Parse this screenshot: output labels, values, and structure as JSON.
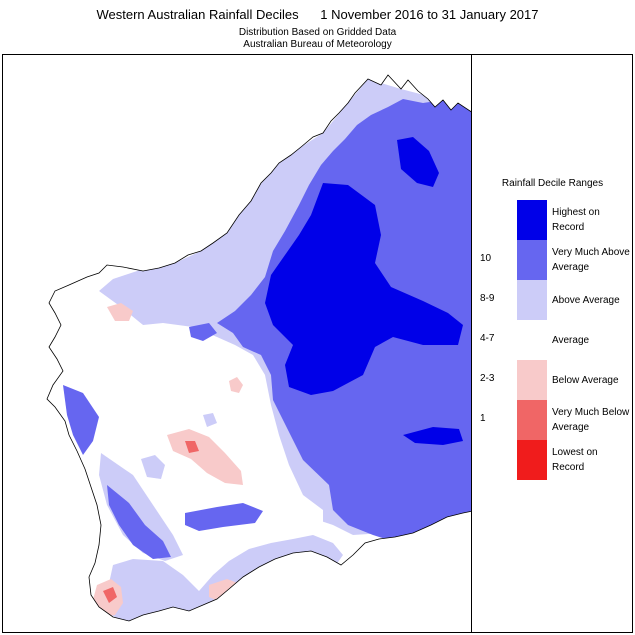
{
  "header": {
    "title": "Western Australian Rainfall Deciles      1 November 2016 to 31 January 2017",
    "subtitle_line1": "Distribution Based on Gridded Data",
    "subtitle_line2": "Australian Bureau of Meteorology"
  },
  "legend": {
    "title": "Rainfall Decile Ranges",
    "ranges": [
      {
        "code": "",
        "label": "Highest on Record",
        "color": "#0000e8"
      },
      {
        "code": "10",
        "label": "Very Much Above Average",
        "color": "#6666f0"
      },
      {
        "code": "8-9",
        "label": "Above Average",
        "color": "#ccccf8"
      },
      {
        "code": "4-7",
        "label": "Average",
        "color": "#ffffff"
      },
      {
        "code": "2-3",
        "label": "Below Average",
        "color": "#f8caca"
      },
      {
        "code": "1",
        "label": "Very Much Below Average",
        "color": "#f06666"
      },
      {
        "code": "",
        "label": "Lowest on Record",
        "color": "#f01c1c"
      }
    ]
  },
  "map": {
    "region": "Western Australia",
    "colors": {
      "highest": "#0000e8",
      "very_much_above": "#6666f0",
      "above": "#ccccf8",
      "average": "#ffffff",
      "below": "#f8caca",
      "very_much_below": "#f06666",
      "lowest": "#f01c1c"
    }
  }
}
